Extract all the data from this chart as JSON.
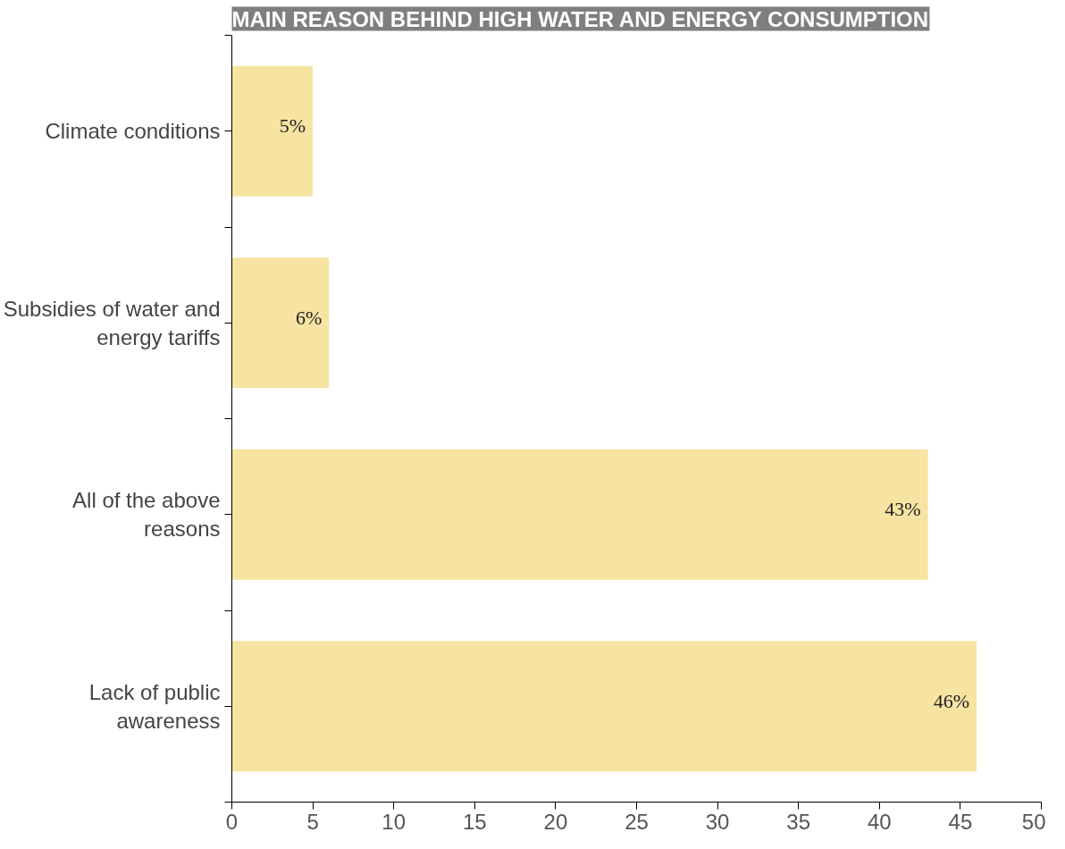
{
  "chart_data": {
    "type": "bar",
    "orientation": "horizontal",
    "title": "MAIN REASON BEHIND HIGH WATER AND ENERGY CONSUMPTION",
    "categories": [
      "Climate conditions",
      "Subsidies of water and\nenergy tariffs",
      "All of the above\nreasons",
      "Lack of public\nawareness"
    ],
    "values": [
      5,
      6,
      43,
      46
    ],
    "value_labels": [
      "5%",
      "6%",
      "43%",
      "46%"
    ],
    "color": "#f7e4a2",
    "xlim": [
      0,
      50
    ],
    "xticks": [
      0,
      5,
      10,
      15,
      20,
      25,
      30,
      35,
      40,
      45,
      50
    ],
    "grid": false
  }
}
